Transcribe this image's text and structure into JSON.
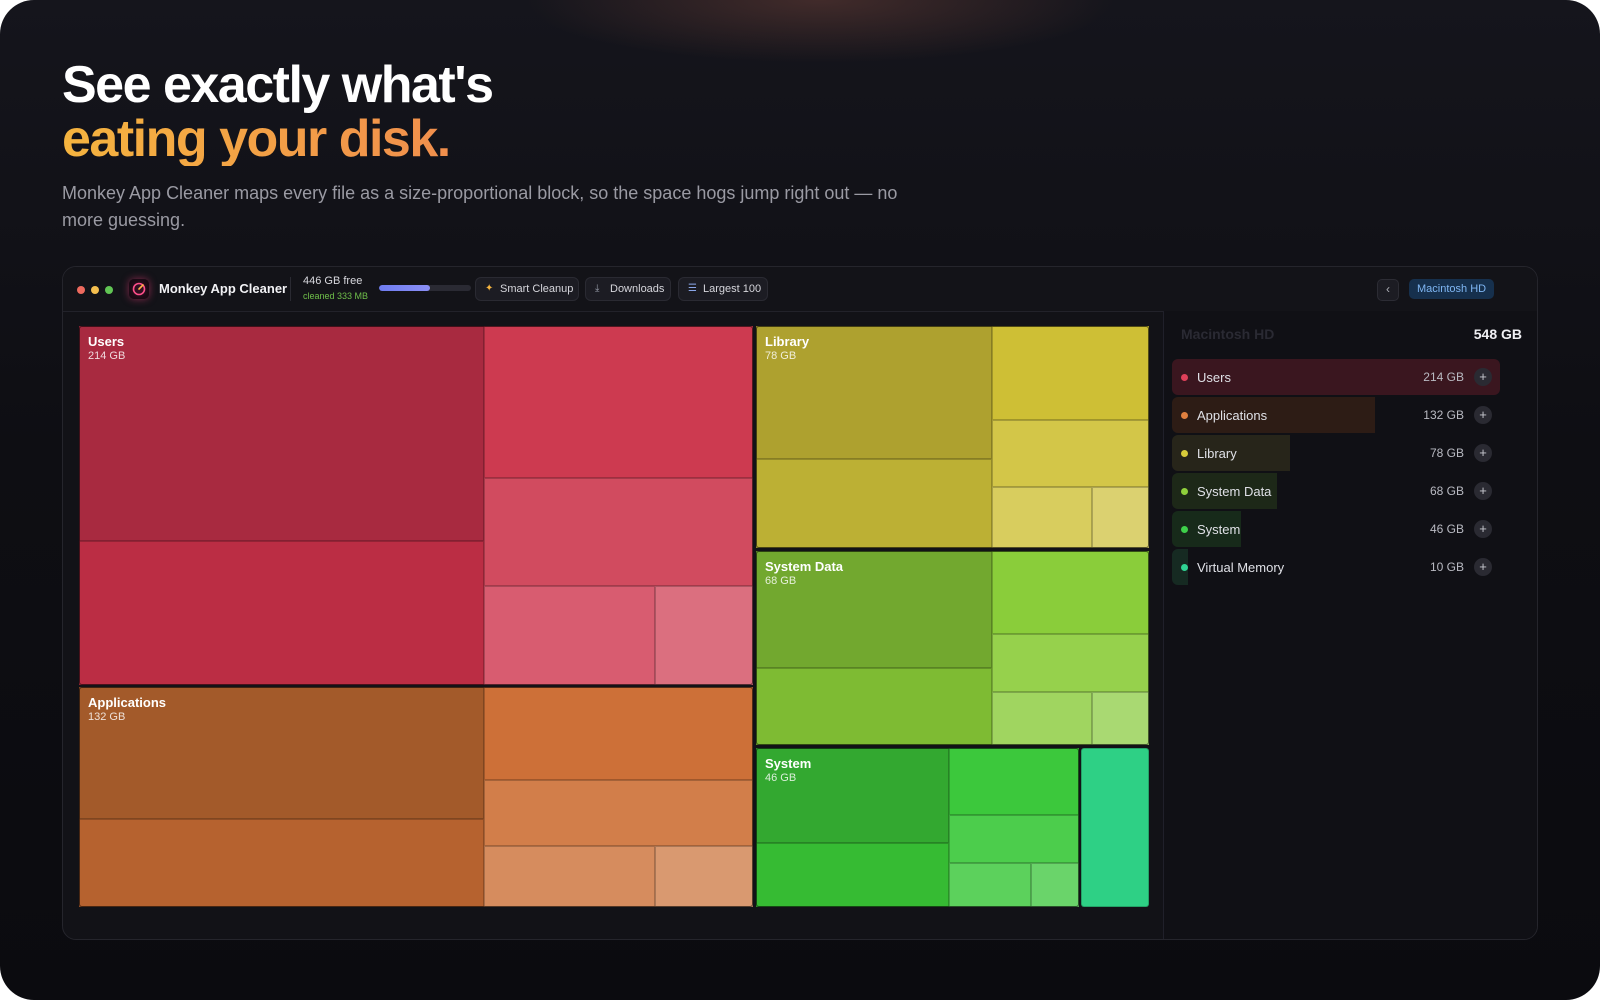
{
  "hero": {
    "title_line1": "See exactly what's",
    "title_line2": "eating your disk.",
    "subtitle": "Monkey App Cleaner maps every file as a size-proportional block, so the space hogs jump right out — no more guessing."
  },
  "app": {
    "name": "Monkey App Cleaner",
    "free_space": "446 GB free",
    "cleaned": "cleaned 333 MB",
    "disk_used_fraction": 0.55,
    "toolbar": {
      "smart_cleanup": "Smart Cleanup",
      "downloads": "Downloads",
      "largest": "Largest 100"
    },
    "back_glyph": "‹",
    "volume": "Macintosh HD"
  },
  "colors": {
    "traffic_red": "#ed6a5e",
    "traffic_yellow": "#f5bf4f",
    "traffic_green": "#61c554",
    "accent_orange": "#f08a4e",
    "accent_gold": "#f5b43f"
  },
  "treemap": {
    "groups": [
      {
        "name": "Users",
        "size": "214 GB"
      },
      {
        "name": "Applications",
        "size": "132 GB"
      },
      {
        "name": "Library",
        "size": "78 GB"
      },
      {
        "name": "System Data",
        "size": "68 GB"
      },
      {
        "name": "System",
        "size": "46 GB"
      }
    ]
  },
  "panel": {
    "title": "Macintosh HD",
    "total": "548 GB",
    "items": [
      {
        "label": "Users",
        "size": "214 GB",
        "color": "#e0405a",
        "bar": "#3a161f",
        "fraction": 1.0
      },
      {
        "label": "Applications",
        "size": "132 GB",
        "color": "#e0803f",
        "bar": "#2d1c15",
        "fraction": 0.62
      },
      {
        "label": "Library",
        "size": "78 GB",
        "color": "#d7cb3a",
        "bar": "#27251a",
        "fraction": 0.36
      },
      {
        "label": "System Data",
        "size": "68 GB",
        "color": "#8fcf3c",
        "bar": "#1d2818",
        "fraction": 0.32
      },
      {
        "label": "System",
        "size": "46 GB",
        "color": "#3ecf4a",
        "bar": "#172a1a",
        "fraction": 0.21
      },
      {
        "label": "Virtual Memory",
        "size": "10 GB",
        "color": "#2fd393",
        "bar": "#162a22",
        "fraction": 0.05
      }
    ],
    "plus_glyph": "+"
  }
}
